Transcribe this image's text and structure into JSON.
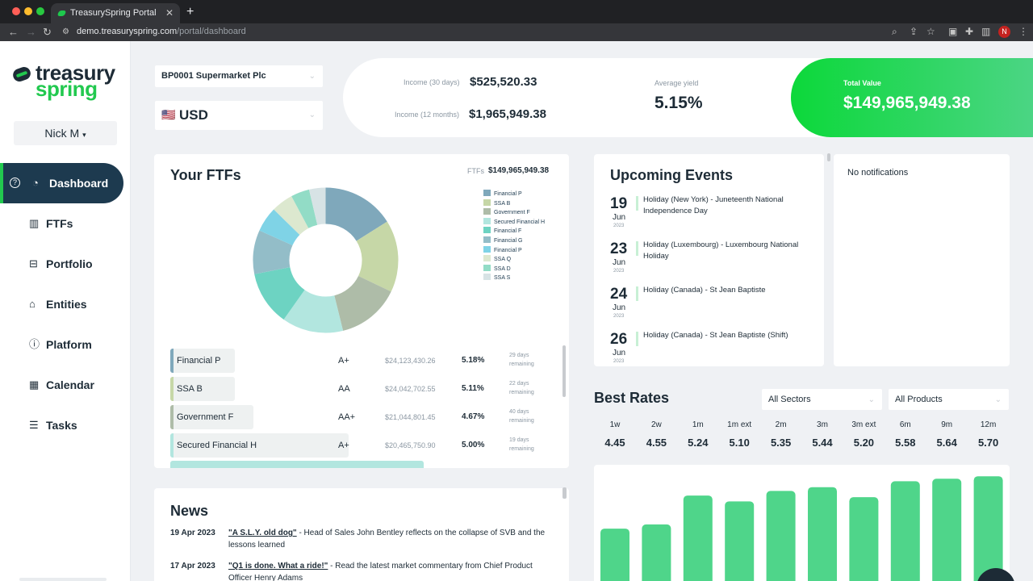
{
  "browser": {
    "tab_title": "TreasurySpring Portal",
    "url_host": "demo.treasuryspring.com",
    "url_path": "/portal/dashboard",
    "avatar_letter": "N"
  },
  "sidebar": {
    "logo_line1": "treasury",
    "logo_line2": "spring",
    "user": "Nick M",
    "items": [
      {
        "label": "Dashboard",
        "icon": "gauge-icon"
      },
      {
        "label": "FTFs",
        "icon": "bar-chart-icon"
      },
      {
        "label": "Portfolio",
        "icon": "briefcase-icon"
      },
      {
        "label": "Entities",
        "icon": "bank-icon"
      },
      {
        "label": "Platform",
        "icon": "info-icon"
      },
      {
        "label": "Calendar",
        "icon": "calendar-icon"
      },
      {
        "label": "Tasks",
        "icon": "tasks-icon"
      }
    ]
  },
  "selectors": {
    "entity": "BP0001 Supermarket Plc",
    "currency": "USD",
    "currency_flag": "🇺🇸"
  },
  "summary": {
    "income_30_label": "Income (30 days)",
    "income_30_value": "$525,520.33",
    "income_12_label": "Income (12 months)",
    "income_12_value": "$1,965,949.38",
    "yield_label": "Average yield",
    "yield_value": "5.15%",
    "total_label": "Total Value",
    "total_value": "$149,965,949.38"
  },
  "ftfs": {
    "title": "Your FTFs",
    "total_label": "FTFs",
    "total_value": "$149,965,949.38",
    "donut": [
      {
        "name": "Financial P",
        "value": 24123430.26,
        "color": "#7fa8bb"
      },
      {
        "name": "SSA B",
        "value": 24042702.55,
        "color": "#c6d7a7"
      },
      {
        "name": "Government F",
        "value": 21044801.45,
        "color": "#aebca8"
      },
      {
        "name": "Secured Financial H",
        "value": 20465750.9,
        "color": "#b2e6df"
      },
      {
        "name": "Financial F",
        "value": 18200000,
        "color": "#6dd3c2"
      },
      {
        "name": "Financial G",
        "value": 14700000,
        "color": "#93bdc8"
      },
      {
        "name": "Financial P",
        "value": 8400000,
        "color": "#7fd3e6"
      },
      {
        "name": "SSA Q",
        "value": 7300000,
        "color": "#dce8cf"
      },
      {
        "name": "SSA D",
        "value": 6200000,
        "color": "#92dcc6"
      },
      {
        "name": "SSA S",
        "value": 5500000,
        "color": "#d7e3e5"
      }
    ],
    "rows": [
      {
        "name": "Financial P",
        "rating": "A+",
        "amount": "$24,123,430.26",
        "yield": "5.18%",
        "days": "29 days",
        "rem": "remaining",
        "bar": 0.16,
        "color": "#7fa8bb"
      },
      {
        "name": "SSA B",
        "rating": "AA",
        "amount": "$24,042,702.55",
        "yield": "5.11%",
        "days": "22 days",
        "rem": "remaining",
        "bar": 0.08,
        "color": "#c6d7a7"
      },
      {
        "name": "Government F",
        "rating": "AA+",
        "amount": "$21,044,801.45",
        "yield": "4.67%",
        "days": "40 days",
        "rem": "remaining",
        "bar": 0.22,
        "color": "#aebca8"
      },
      {
        "name": "Secured Financial H",
        "rating": "A+",
        "amount": "$20,465,750.90",
        "yield": "5.00%",
        "days": "19 days",
        "rem": "remaining",
        "bar": 0.47,
        "color": "#b2e6df"
      }
    ]
  },
  "events": {
    "title": "Upcoming Events",
    "items": [
      {
        "day": "19",
        "month": "Jun",
        "year": "2023",
        "text": "Holiday (New York) - Juneteenth National Independence Day"
      },
      {
        "day": "23",
        "month": "Jun",
        "year": "2023",
        "text": "Holiday (Luxembourg) - Luxembourg National Holiday"
      },
      {
        "day": "24",
        "month": "Jun",
        "year": "2023",
        "text": "Holiday (Canada) - St Jean Baptiste"
      },
      {
        "day": "26",
        "month": "Jun",
        "year": "2023",
        "text": "Holiday (Canada) - St Jean Baptiste (Shift)"
      }
    ]
  },
  "notifications": {
    "empty": "No notifications"
  },
  "best_rates": {
    "title": "Best Rates",
    "sector_filter": "All Sectors",
    "product_filter": "All Products",
    "bar_color": "#4fd58a",
    "tenors": [
      {
        "label": "1w",
        "value": "4.45",
        "rate": 4.45
      },
      {
        "label": "2w",
        "value": "4.55",
        "rate": 4.55
      },
      {
        "label": "1m",
        "value": "5.24",
        "rate": 5.24
      },
      {
        "label": "1m ext",
        "value": "5.10",
        "rate": 5.1
      },
      {
        "label": "2m",
        "value": "5.35",
        "rate": 5.35
      },
      {
        "label": "3m",
        "value": "5.44",
        "rate": 5.44
      },
      {
        "label": "3m ext",
        "value": "5.20",
        "rate": 5.2
      },
      {
        "label": "6m",
        "value": "5.58",
        "rate": 5.58
      },
      {
        "label": "9m",
        "value": "5.64",
        "rate": 5.64
      },
      {
        "label": "12m",
        "value": "5.70",
        "rate": 5.7
      }
    ]
  },
  "news": {
    "title": "News",
    "items": [
      {
        "date": "19 Apr 2023",
        "headline": "\"A S.L.Y. old dog\"",
        "body": " - Head of Sales John Bentley reflects on the collapse of SVB and the lessons learned"
      },
      {
        "date": "17 Apr 2023",
        "headline": "\"Q1 is done. What a ride!\"",
        "body": " - Read the latest market commentary from Chief Product Officer Henry Adams"
      }
    ]
  }
}
